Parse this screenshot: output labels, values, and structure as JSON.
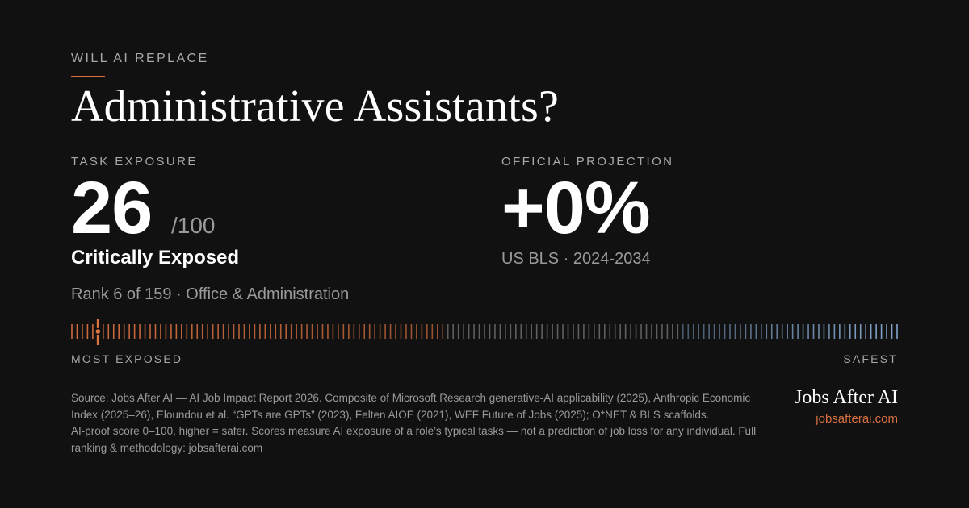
{
  "header": {
    "kicker": "WILL AI REPLACE",
    "title": "Administrative Assistants?"
  },
  "task_exposure": {
    "label": "TASK EXPOSURE",
    "score": "26",
    "out_of": "/100",
    "verdict": "Critically Exposed",
    "rank": "Rank 6 of 159 · Office & Administration"
  },
  "projection": {
    "label": "OFFICIAL PROJECTION",
    "value": "+0%",
    "source": "US BLS · 2024-2034"
  },
  "scale": {
    "total": 159,
    "rank": 6,
    "left_label": "MOST EXPOSED",
    "right_label": "SAFEST",
    "colors": {
      "exposed": "#d9703f",
      "neutral": "#7a7a7a",
      "safe": "#8fb4e0",
      "marker": "#e0743f"
    }
  },
  "footnote": {
    "line1": "Source: Jobs After AI — AI Job Impact Report 2026. Composite of Microsoft Research generative-AI applicability (2025), Anthropic Economic Index (2025–26), Eloundou et al. “GPTs are GPTs” (2023), Felten AIOE (2021), WEF Future of Jobs (2025); O*NET & BLS scaffolds.",
    "line2": "AI-proof score 0–100, higher = safer. Scores measure AI exposure of a role’s typical tasks — not a prediction of job loss for any individual. Full ranking & methodology: jobsafterai.com"
  },
  "brand": {
    "name": "Jobs After AI",
    "url": "jobsafterai.com"
  }
}
